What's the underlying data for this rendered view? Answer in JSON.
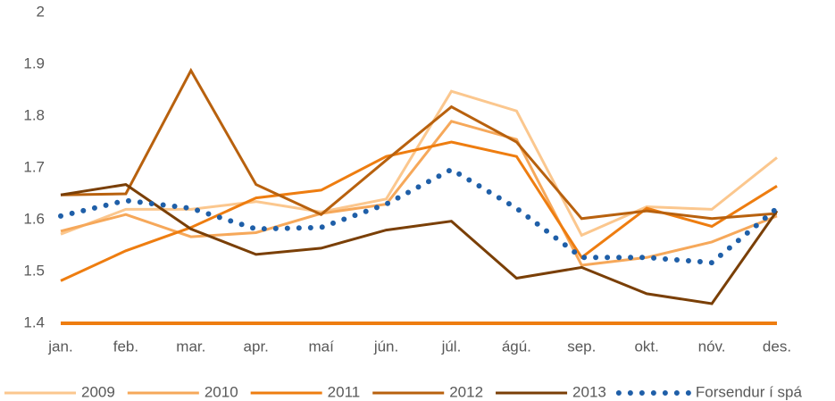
{
  "chart_data": {
    "type": "line",
    "categories": [
      "jan.",
      "feb.",
      "mar.",
      "apr.",
      "maí",
      "jún.",
      "júl.",
      "ágú.",
      "sep.",
      "okt.",
      "nóv.",
      "des."
    ],
    "series": [
      {
        "name": "2009",
        "color": "#fbc78e",
        "values": [
          1.572,
          1.62,
          1.62,
          1.635,
          1.615,
          1.64,
          1.848,
          1.81,
          1.57,
          1.625,
          1.62,
          1.72
        ]
      },
      {
        "name": "2010",
        "color": "#f6a85a",
        "values": [
          1.578,
          1.61,
          1.567,
          1.575,
          1.612,
          1.63,
          1.79,
          1.755,
          1.512,
          1.527,
          1.557,
          1.607
        ]
      },
      {
        "name": "2011",
        "color": "#ee7d10",
        "values": [
          1.482,
          1.54,
          1.585,
          1.642,
          1.657,
          1.722,
          1.75,
          1.722,
          1.527,
          1.622,
          1.587,
          1.665
        ]
      },
      {
        "name": "2012",
        "color": "#b8610e",
        "values": [
          1.648,
          1.65,
          1.888,
          1.668,
          1.61,
          1.715,
          1.818,
          1.75,
          1.602,
          1.617,
          1.602,
          1.612
        ]
      },
      {
        "name": "2013",
        "color": "#7a3f06",
        "values": [
          1.648,
          1.668,
          1.582,
          1.533,
          1.545,
          1.58,
          1.597,
          1.487,
          1.508,
          1.457,
          1.438,
          1.617
        ]
      },
      {
        "name": "Forsendur í spá",
        "color": "#1f5fa8",
        "dotted": true,
        "values": [
          1.607,
          1.637,
          1.622,
          1.582,
          1.585,
          1.63,
          1.697,
          1.622,
          1.527,
          1.527,
          1.517,
          1.622
        ]
      }
    ],
    "ylim": [
      1.4,
      2
    ],
    "yticks": [
      1.4,
      1.5,
      1.6,
      1.7,
      1.8,
      1.9,
      2
    ],
    "axis_color": "#ee7d10",
    "legend": "bottom"
  }
}
